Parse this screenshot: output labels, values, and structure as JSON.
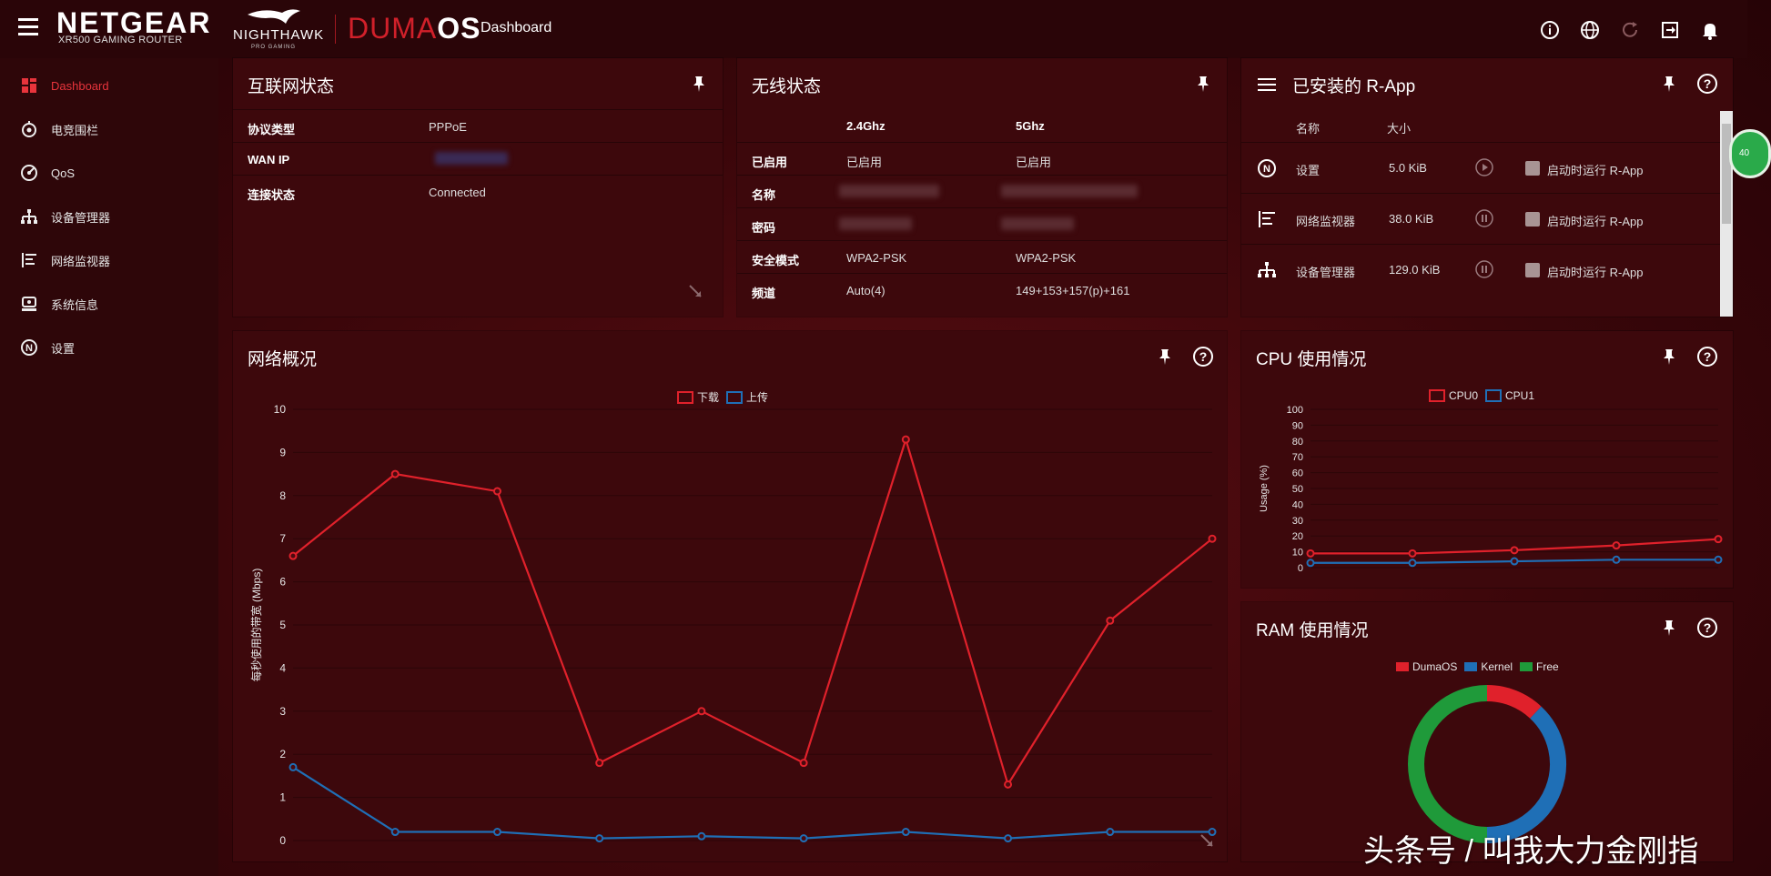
{
  "header": {
    "brand": "NETGEAR",
    "brand_sub": "XR500 GAMING ROUTER",
    "nighthawk": "NIGHTHAWK",
    "pro_gaming": "PRO GAMING",
    "duma_part1": "DUMA",
    "duma_part2": "OS",
    "page_title": "Dashboard",
    "icons": [
      "info-icon",
      "globe-icon",
      "refresh-icon",
      "logout-icon",
      "bell-icon"
    ]
  },
  "sidebar": {
    "items": [
      {
        "label": "Dashboard",
        "icon": "dashboard-icon",
        "active": true
      },
      {
        "label": "电竞围栏",
        "icon": "geofence-icon"
      },
      {
        "label": "QoS",
        "icon": "qos-icon"
      },
      {
        "label": "设备管理器",
        "icon": "device-manager-icon"
      },
      {
        "label": "网络监视器",
        "icon": "network-monitor-icon"
      },
      {
        "label": "系统信息",
        "icon": "system-info-icon"
      },
      {
        "label": "设置",
        "icon": "settings-icon"
      }
    ]
  },
  "internet_status": {
    "title": "互联网状态",
    "rows": [
      {
        "label": "协议类型",
        "value": "PPPoE"
      },
      {
        "label": "WAN IP",
        "value": ""
      },
      {
        "label": "连接状态",
        "value": "Connected"
      }
    ]
  },
  "wireless_status": {
    "title": "无线状态",
    "col_24": "2.4Ghz",
    "col_5": "5Ghz",
    "rows": [
      {
        "label": "已启用",
        "v24": "已启用",
        "v5": "已启用"
      },
      {
        "label": "名称",
        "v24": "",
        "v5": ""
      },
      {
        "label": "密码",
        "v24": "",
        "v5": ""
      },
      {
        "label": "安全模式",
        "v24": "WPA2-PSK",
        "v5": "WPA2-PSK"
      },
      {
        "label": "频道",
        "v24": "Auto(4)",
        "v5": "149+153+157(p)+161"
      }
    ]
  },
  "rapps": {
    "title": "已安装的 R-App",
    "col_name": "名称",
    "col_size": "大小",
    "rows": [
      {
        "name": "设置",
        "size": "5.0 KiB",
        "state": "play",
        "checkbox_label": "启动时运行 R-App",
        "icon": "settings-icon"
      },
      {
        "name": "网络监视器",
        "size": "38.0 KiB",
        "state": "pause",
        "checkbox_label": "启动时运行 R-App",
        "icon": "network-monitor-icon"
      },
      {
        "name": "设备管理器",
        "size": "129.0 KiB",
        "state": "pause",
        "checkbox_label": "启动时运行 R-App",
        "icon": "device-manager-icon"
      }
    ]
  },
  "network_overview": {
    "title": "网络概况",
    "legend_download": "下载",
    "legend_upload": "上传",
    "color_download": "#e0212b",
    "color_upload": "#1f6fb6"
  },
  "cpu_usage": {
    "title": "CPU 使用情况",
    "legend_cpu0": "CPU0",
    "legend_cpu1": "CPU1",
    "color_cpu0": "#e0212b",
    "color_cpu1": "#1f6fb6"
  },
  "ram_usage": {
    "title": "RAM 使用情况",
    "legend_duma": "DumaOS",
    "legend_kernel": "Kernel",
    "legend_free": "Free"
  },
  "watermark": "头条号 / 叫我大力金刚指",
  "green_badge": "40",
  "chart_data": [
    {
      "type": "line",
      "x": [
        1,
        2,
        3,
        4,
        5,
        6,
        7,
        8,
        9,
        10
      ],
      "ylabel": "每秒使用的带宽 (Mbps)",
      "ylim": [
        0,
        10
      ],
      "yticks": [
        0,
        1,
        2,
        3,
        4,
        5,
        6,
        7,
        8,
        9,
        10
      ],
      "grid": true,
      "legend": "top-center",
      "series": [
        {
          "name": "下载",
          "values": [
            6.6,
            8.5,
            8.1,
            1.8,
            3.0,
            1.8,
            9.3,
            1.3,
            5.1,
            7.0
          ]
        },
        {
          "name": "上传",
          "values": [
            1.7,
            0.2,
            0.2,
            0.05,
            0.1,
            0.05,
            0.2,
            0.05,
            0.2,
            0.2
          ]
        }
      ]
    },
    {
      "type": "line",
      "x": [
        1,
        2,
        3,
        4,
        5
      ],
      "ylabel": "Usage (%)",
      "ylim": [
        0,
        100
      ],
      "yticks": [
        0,
        10,
        20,
        30,
        40,
        50,
        60,
        70,
        80,
        90,
        100
      ],
      "grid": true,
      "legend": "top-center",
      "series": [
        {
          "name": "CPU0",
          "values": [
            9,
            9,
            11,
            14,
            18
          ]
        },
        {
          "name": "CPU1",
          "values": [
            3,
            3,
            4,
            5,
            5
          ]
        }
      ]
    },
    {
      "type": "pie",
      "legend": "top-center",
      "categories": [
        "DumaOS",
        "Kernel",
        "Free"
      ],
      "values": [
        12,
        38,
        50
      ],
      "colors": [
        "#e0212b",
        "#1f6fb6",
        "#1f9a3a"
      ]
    }
  ]
}
